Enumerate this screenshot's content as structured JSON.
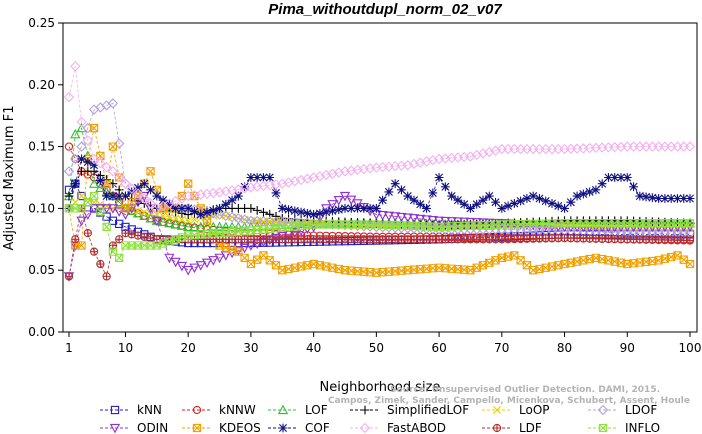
{
  "chart_data": {
    "type": "line",
    "title": "Pima_withoutdupl_norm_02_v07",
    "xlabel": "Neighborhood size",
    "ylabel": "Adjusted Maximum F1",
    "xlim": [
      0,
      100
    ],
    "ylim": [
      0,
      0.25
    ],
    "xticks": [
      1,
      10,
      20,
      30,
      40,
      50,
      60,
      70,
      80,
      90,
      100
    ],
    "yticks": [
      0.0,
      0.05,
      0.1,
      0.15,
      0.2,
      0.25
    ],
    "ytick_labels": [
      "0.00",
      "0.05",
      "0.10",
      "0.15",
      "0.20",
      "0.25"
    ],
    "grid": false,
    "legend_position": "bottom",
    "credit": [
      "Source: Unsupervised Outlier Detection. DAMI, 2015.",
      "Campos, Zimek, Sander, Campello, Micenkova, Schubert, Assent, Houle"
    ],
    "series": [
      {
        "name": "kNN",
        "color": "#1f1fc8",
        "marker": "square",
        "points": [
          [
            1,
            0.115
          ],
          [
            2,
            0.12
          ],
          [
            3,
            0.11
          ],
          [
            5,
            0.1
          ],
          [
            8,
            0.09
          ],
          [
            10,
            0.085
          ],
          [
            15,
            0.075
          ],
          [
            20,
            0.072
          ],
          [
            25,
            0.072
          ],
          [
            30,
            0.072
          ],
          [
            40,
            0.073
          ],
          [
            50,
            0.074
          ],
          [
            60,
            0.075
          ],
          [
            70,
            0.077
          ],
          [
            80,
            0.079
          ],
          [
            90,
            0.079
          ],
          [
            100,
            0.079
          ]
        ]
      },
      {
        "name": "kNNW",
        "color": "#e02020",
        "marker": "circle",
        "points": [
          [
            1,
            0.15
          ],
          [
            2,
            0.14
          ],
          [
            3,
            0.13
          ],
          [
            5,
            0.125
          ],
          [
            8,
            0.11
          ],
          [
            10,
            0.1
          ],
          [
            15,
            0.09
          ],
          [
            20,
            0.085
          ],
          [
            25,
            0.082
          ],
          [
            30,
            0.08
          ],
          [
            40,
            0.078
          ],
          [
            50,
            0.077
          ],
          [
            60,
            0.077
          ],
          [
            70,
            0.076
          ],
          [
            80,
            0.076
          ],
          [
            90,
            0.075
          ],
          [
            100,
            0.075
          ]
        ]
      },
      {
        "name": "LOF",
        "color": "#30c030",
        "marker": "triangle-up",
        "points": [
          [
            1,
            0.11
          ],
          [
            2,
            0.16
          ],
          [
            3,
            0.165
          ],
          [
            5,
            0.12
          ],
          [
            8,
            0.11
          ],
          [
            10,
            0.1
          ],
          [
            15,
            0.09
          ],
          [
            20,
            0.085
          ],
          [
            30,
            0.085
          ],
          [
            40,
            0.088
          ],
          [
            50,
            0.088
          ],
          [
            60,
            0.087
          ],
          [
            70,
            0.087
          ],
          [
            80,
            0.088
          ],
          [
            90,
            0.088
          ],
          [
            100,
            0.088
          ]
        ]
      },
      {
        "name": "SimplifiedLOF",
        "color": "#000000",
        "marker": "plus",
        "points": [
          [
            1,
            0.11
          ],
          [
            3,
            0.13
          ],
          [
            5,
            0.13
          ],
          [
            8,
            0.12
          ],
          [
            10,
            0.11
          ],
          [
            15,
            0.1
          ],
          [
            20,
            0.095
          ],
          [
            25,
            0.1
          ],
          [
            30,
            0.1
          ],
          [
            35,
            0.092
          ],
          [
            40,
            0.09
          ],
          [
            50,
            0.088
          ],
          [
            60,
            0.086
          ],
          [
            70,
            0.088
          ],
          [
            80,
            0.09
          ],
          [
            90,
            0.09
          ],
          [
            100,
            0.088
          ]
        ]
      },
      {
        "name": "LoOP",
        "color": "#e8d000",
        "marker": "x",
        "points": [
          [
            1,
            0.1
          ],
          [
            3,
            0.11
          ],
          [
            5,
            0.105
          ],
          [
            8,
            0.1
          ],
          [
            10,
            0.1
          ],
          [
            15,
            0.095
          ],
          [
            20,
            0.09
          ],
          [
            25,
            0.095
          ],
          [
            30,
            0.09
          ],
          [
            40,
            0.088
          ],
          [
            50,
            0.086
          ],
          [
            60,
            0.085
          ],
          [
            70,
            0.086
          ],
          [
            80,
            0.087
          ],
          [
            90,
            0.085
          ],
          [
            100,
            0.085
          ]
        ]
      },
      {
        "name": "LDOF",
        "color": "#b0a0e0",
        "marker": "diamond",
        "points": [
          [
            1,
            0.13
          ],
          [
            3,
            0.15
          ],
          [
            5,
            0.18
          ],
          [
            8,
            0.185
          ],
          [
            10,
            0.12
          ],
          [
            15,
            0.1
          ],
          [
            20,
            0.1
          ],
          [
            30,
            0.09
          ],
          [
            40,
            0.088
          ],
          [
            50,
            0.085
          ],
          [
            60,
            0.083
          ],
          [
            70,
            0.083
          ],
          [
            80,
            0.082
          ],
          [
            90,
            0.08
          ],
          [
            100,
            0.08
          ]
        ]
      },
      {
        "name": "ODIN",
        "color": "#9030d0",
        "marker": "triangle-down",
        "points": [
          [
            1,
            0.045
          ],
          [
            2,
            0.07
          ],
          [
            3,
            0.09
          ],
          [
            5,
            0.1
          ],
          [
            8,
            0.1
          ],
          [
            10,
            0.095
          ],
          [
            13,
            0.11
          ],
          [
            15,
            0.09
          ],
          [
            17,
            0.06
          ],
          [
            20,
            0.05
          ],
          [
            25,
            0.06
          ],
          [
            30,
            0.07
          ],
          [
            40,
            0.085
          ],
          [
            42,
            0.1
          ],
          [
            45,
            0.11
          ],
          [
            50,
            0.095
          ],
          [
            60,
            0.09
          ],
          [
            70,
            0.088
          ],
          [
            80,
            0.085
          ],
          [
            90,
            0.085
          ],
          [
            100,
            0.085
          ]
        ]
      },
      {
        "name": "KDEOS",
        "color": "#f0a000",
        "marker": "square-x",
        "points": [
          [
            1,
            0.1
          ],
          [
            2,
            0.07
          ],
          [
            3,
            0.07
          ],
          [
            4,
            0.14
          ],
          [
            5,
            0.165
          ],
          [
            7,
            0.12
          ],
          [
            8,
            0.15
          ],
          [
            10,
            0.1
          ],
          [
            12,
            0.11
          ],
          [
            14,
            0.13
          ],
          [
            16,
            0.1
          ],
          [
            18,
            0.1
          ],
          [
            20,
            0.12
          ],
          [
            25,
            0.07
          ],
          [
            28,
            0.065
          ],
          [
            30,
            0.055
          ],
          [
            32,
            0.062
          ],
          [
            35,
            0.05
          ],
          [
            40,
            0.055
          ],
          [
            45,
            0.05
          ],
          [
            50,
            0.048
          ],
          [
            55,
            0.05
          ],
          [
            60,
            0.052
          ],
          [
            65,
            0.05
          ],
          [
            70,
            0.06
          ],
          [
            72,
            0.062
          ],
          [
            75,
            0.05
          ],
          [
            80,
            0.055
          ],
          [
            85,
            0.06
          ],
          [
            90,
            0.055
          ],
          [
            95,
            0.058
          ],
          [
            98,
            0.062
          ],
          [
            100,
            0.055
          ]
        ]
      },
      {
        "name": "COF",
        "color": "#101080",
        "marker": "asterisk",
        "points": [
          [
            1,
            0.1
          ],
          [
            3,
            0.14
          ],
          [
            5,
            0.135
          ],
          [
            7,
            0.11
          ],
          [
            10,
            0.11
          ],
          [
            13,
            0.12
          ],
          [
            15,
            0.11
          ],
          [
            18,
            0.1
          ],
          [
            20,
            0.1
          ],
          [
            22,
            0.095
          ],
          [
            25,
            0.1
          ],
          [
            28,
            0.11
          ],
          [
            30,
            0.125
          ],
          [
            33,
            0.125
          ],
          [
            35,
            0.1
          ],
          [
            40,
            0.095
          ],
          [
            45,
            0.1
          ],
          [
            50,
            0.1
          ],
          [
            53,
            0.12
          ],
          [
            55,
            0.11
          ],
          [
            58,
            0.1
          ],
          [
            60,
            0.125
          ],
          [
            62,
            0.11
          ],
          [
            65,
            0.1
          ],
          [
            68,
            0.11
          ],
          [
            70,
            0.1
          ],
          [
            75,
            0.11
          ],
          [
            80,
            0.1
          ],
          [
            82,
            0.11
          ],
          [
            85,
            0.115
          ],
          [
            87,
            0.125
          ],
          [
            90,
            0.125
          ],
          [
            92,
            0.11
          ],
          [
            95,
            0.108
          ],
          [
            100,
            0.108
          ]
        ]
      },
      {
        "name": "FastABOD",
        "color": "#f4b0f0",
        "marker": "diamond",
        "points": [
          [
            1,
            0.19
          ],
          [
            2,
            0.215
          ],
          [
            3,
            0.17
          ],
          [
            5,
            0.14
          ],
          [
            8,
            0.13
          ],
          [
            10,
            0.12
          ],
          [
            15,
            0.1
          ],
          [
            20,
            0.11
          ],
          [
            25,
            0.113
          ],
          [
            30,
            0.117
          ],
          [
            35,
            0.12
          ],
          [
            40,
            0.125
          ],
          [
            45,
            0.13
          ],
          [
            50,
            0.133
          ],
          [
            55,
            0.135
          ],
          [
            60,
            0.14
          ],
          [
            65,
            0.142
          ],
          [
            70,
            0.148
          ],
          [
            75,
            0.148
          ],
          [
            80,
            0.148
          ],
          [
            85,
            0.149
          ],
          [
            90,
            0.15
          ],
          [
            95,
            0.15
          ],
          [
            100,
            0.15
          ]
        ]
      },
      {
        "name": "LDF",
        "color": "#b03030",
        "marker": "circle-plus",
        "points": [
          [
            1,
            0.045
          ],
          [
            2,
            0.075
          ],
          [
            3,
            0.1
          ],
          [
            4,
            0.08
          ],
          [
            5,
            0.065
          ],
          [
            6,
            0.055
          ],
          [
            7,
            0.045
          ],
          [
            8,
            0.07
          ],
          [
            10,
            0.08
          ],
          [
            15,
            0.075
          ],
          [
            20,
            0.075
          ],
          [
            30,
            0.075
          ],
          [
            40,
            0.075
          ],
          [
            50,
            0.075
          ],
          [
            60,
            0.075
          ],
          [
            70,
            0.075
          ],
          [
            80,
            0.076
          ],
          [
            90,
            0.075
          ],
          [
            100,
            0.074
          ]
        ]
      },
      {
        "name": "INFLO",
        "color": "#90e040",
        "marker": "square-x",
        "points": [
          [
            1,
            0.1
          ],
          [
            3,
            0.1
          ],
          [
            5,
            0.11
          ],
          [
            7,
            0.085
          ],
          [
            8,
            0.065
          ],
          [
            9,
            0.06
          ],
          [
            10,
            0.07
          ],
          [
            15,
            0.07
          ],
          [
            18,
            0.075
          ],
          [
            20,
            0.078
          ],
          [
            30,
            0.082
          ],
          [
            40,
            0.087
          ],
          [
            50,
            0.087
          ],
          [
            60,
            0.085
          ],
          [
            70,
            0.087
          ],
          [
            80,
            0.088
          ],
          [
            90,
            0.088
          ],
          [
            100,
            0.088
          ]
        ]
      }
    ]
  }
}
